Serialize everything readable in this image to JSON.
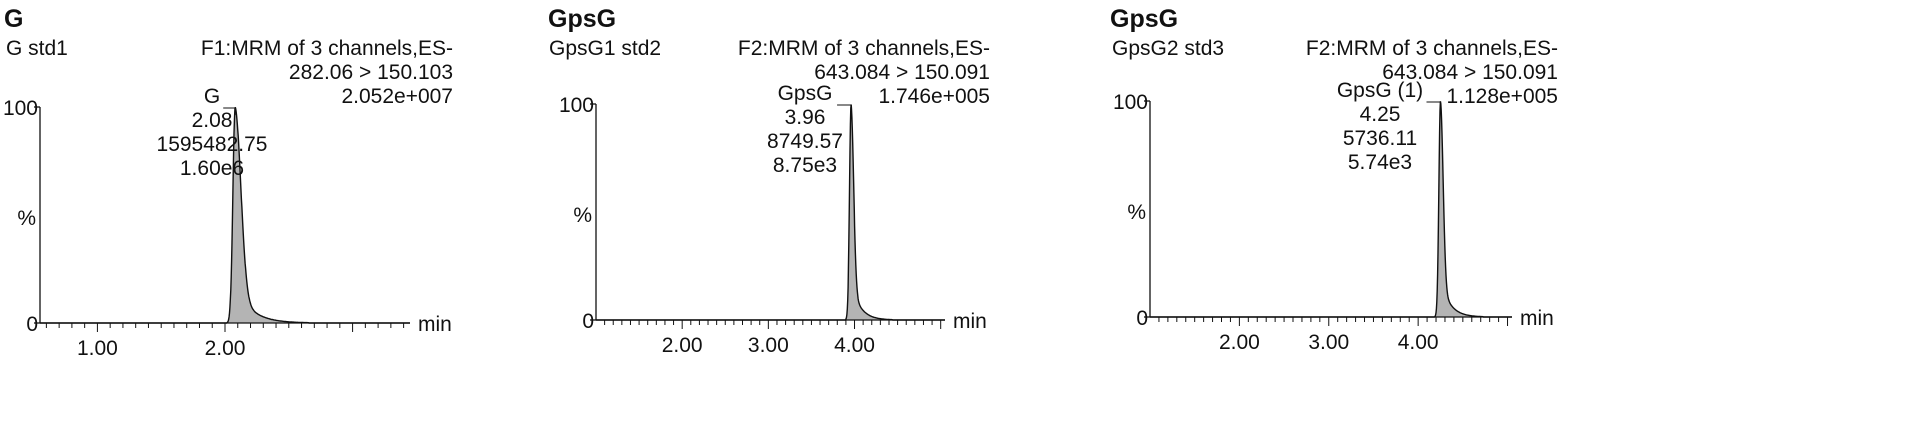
{
  "chart_data": [
    {
      "type": "area",
      "title": "G",
      "sample": "G std1",
      "function_label": "F1:MRM of 3 channels,ES-",
      "transition": "282.06 > 150.103",
      "intensity": "2.052e+007",
      "peak_labels": [
        "G",
        "2.08",
        "1595482.75",
        "1.60e6"
      ],
      "xlabel": "min",
      "ylabel": "%",
      "y_ticks": [
        "0",
        "100"
      ],
      "x_ticks": [
        1.0,
        2.0
      ],
      "x_tick_labels": [
        "1.00",
        "2.00"
      ],
      "xlim": [
        0.55,
        3.45
      ],
      "ylim": [
        0,
        100
      ],
      "peak": {
        "rt": 2.08,
        "sigma_left": 0.018,
        "sigma_right": 0.045,
        "tail": 0.12
      },
      "colors": {
        "fill": "#b4b4b4",
        "line": "#111111"
      }
    },
    {
      "type": "area",
      "title": "GpsG",
      "sample": "GpsG1 std2",
      "function_label": "F2:MRM of 3 channels,ES-",
      "transition": "643.084 > 150.091",
      "intensity": "1.746e+005",
      "peak_labels": [
        "GpsG",
        "3.96",
        "8749.57",
        "8.75e3"
      ],
      "xlabel": "min",
      "ylabel": "%",
      "y_ticks": [
        "0",
        "100"
      ],
      "x_ticks": [
        2.0,
        3.0,
        4.0
      ],
      "x_tick_labels": [
        "2.00",
        "3.00",
        "4.00"
      ],
      "xlim": [
        1.0,
        5.05
      ],
      "ylim": [
        0,
        100
      ],
      "peak": {
        "rt": 3.96,
        "sigma_left": 0.018,
        "sigma_right": 0.03,
        "tail": 0.1
      },
      "colors": {
        "fill": "#b4b4b4",
        "line": "#111111"
      }
    },
    {
      "type": "area",
      "title": "GpsG",
      "sample": "GpsG2 std3",
      "function_label": "F2:MRM of 3 channels,ES-",
      "transition": "643.084 > 150.091",
      "intensity": "1.128e+005",
      "peak_labels": [
        "GpsG (1)",
        "4.25",
        "5736.11",
        "5.74e3"
      ],
      "xlabel": "min",
      "ylabel": "%",
      "y_ticks": [
        "0",
        "100"
      ],
      "x_ticks": [
        2.0,
        3.0,
        4.0
      ],
      "x_tick_labels": [
        "2.00",
        "3.00",
        "4.00"
      ],
      "xlim": [
        1.0,
        5.05
      ],
      "ylim": [
        0,
        100
      ],
      "peak": {
        "rt": 4.25,
        "sigma_left": 0.018,
        "sigma_right": 0.03,
        "tail": 0.1
      },
      "colors": {
        "fill": "#b4b4b4",
        "line": "#111111"
      }
    }
  ]
}
